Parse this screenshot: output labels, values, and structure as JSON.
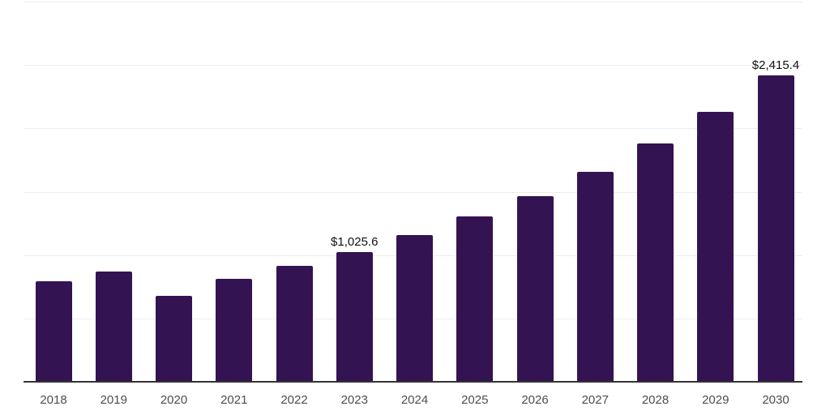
{
  "chart_data": {
    "type": "bar",
    "title": "",
    "xlabel": "",
    "ylabel": "",
    "categories": [
      "2018",
      "2019",
      "2020",
      "2021",
      "2022",
      "2023",
      "2024",
      "2025",
      "2026",
      "2027",
      "2028",
      "2029",
      "2030"
    ],
    "values": [
      790,
      870,
      680,
      810,
      915,
      1025.6,
      1160,
      1305,
      1465,
      1655,
      1878,
      2133,
      2415.4
    ],
    "data_labels": [
      null,
      null,
      null,
      null,
      null,
      "$1,025.6",
      null,
      null,
      null,
      null,
      null,
      null,
      "$2,415.4"
    ],
    "ylim": [
      0,
      3000
    ],
    "y_gridline_step": 500,
    "grid": true,
    "legend": false,
    "y_axis_labels_visible": false,
    "bar_color": "#341352",
    "gridline_color": "#ededed",
    "axis_line_color": "#333333",
    "tick_label_color": "#4d4d4d",
    "data_label_color": "#111111",
    "background_color": "#ffffff"
  }
}
